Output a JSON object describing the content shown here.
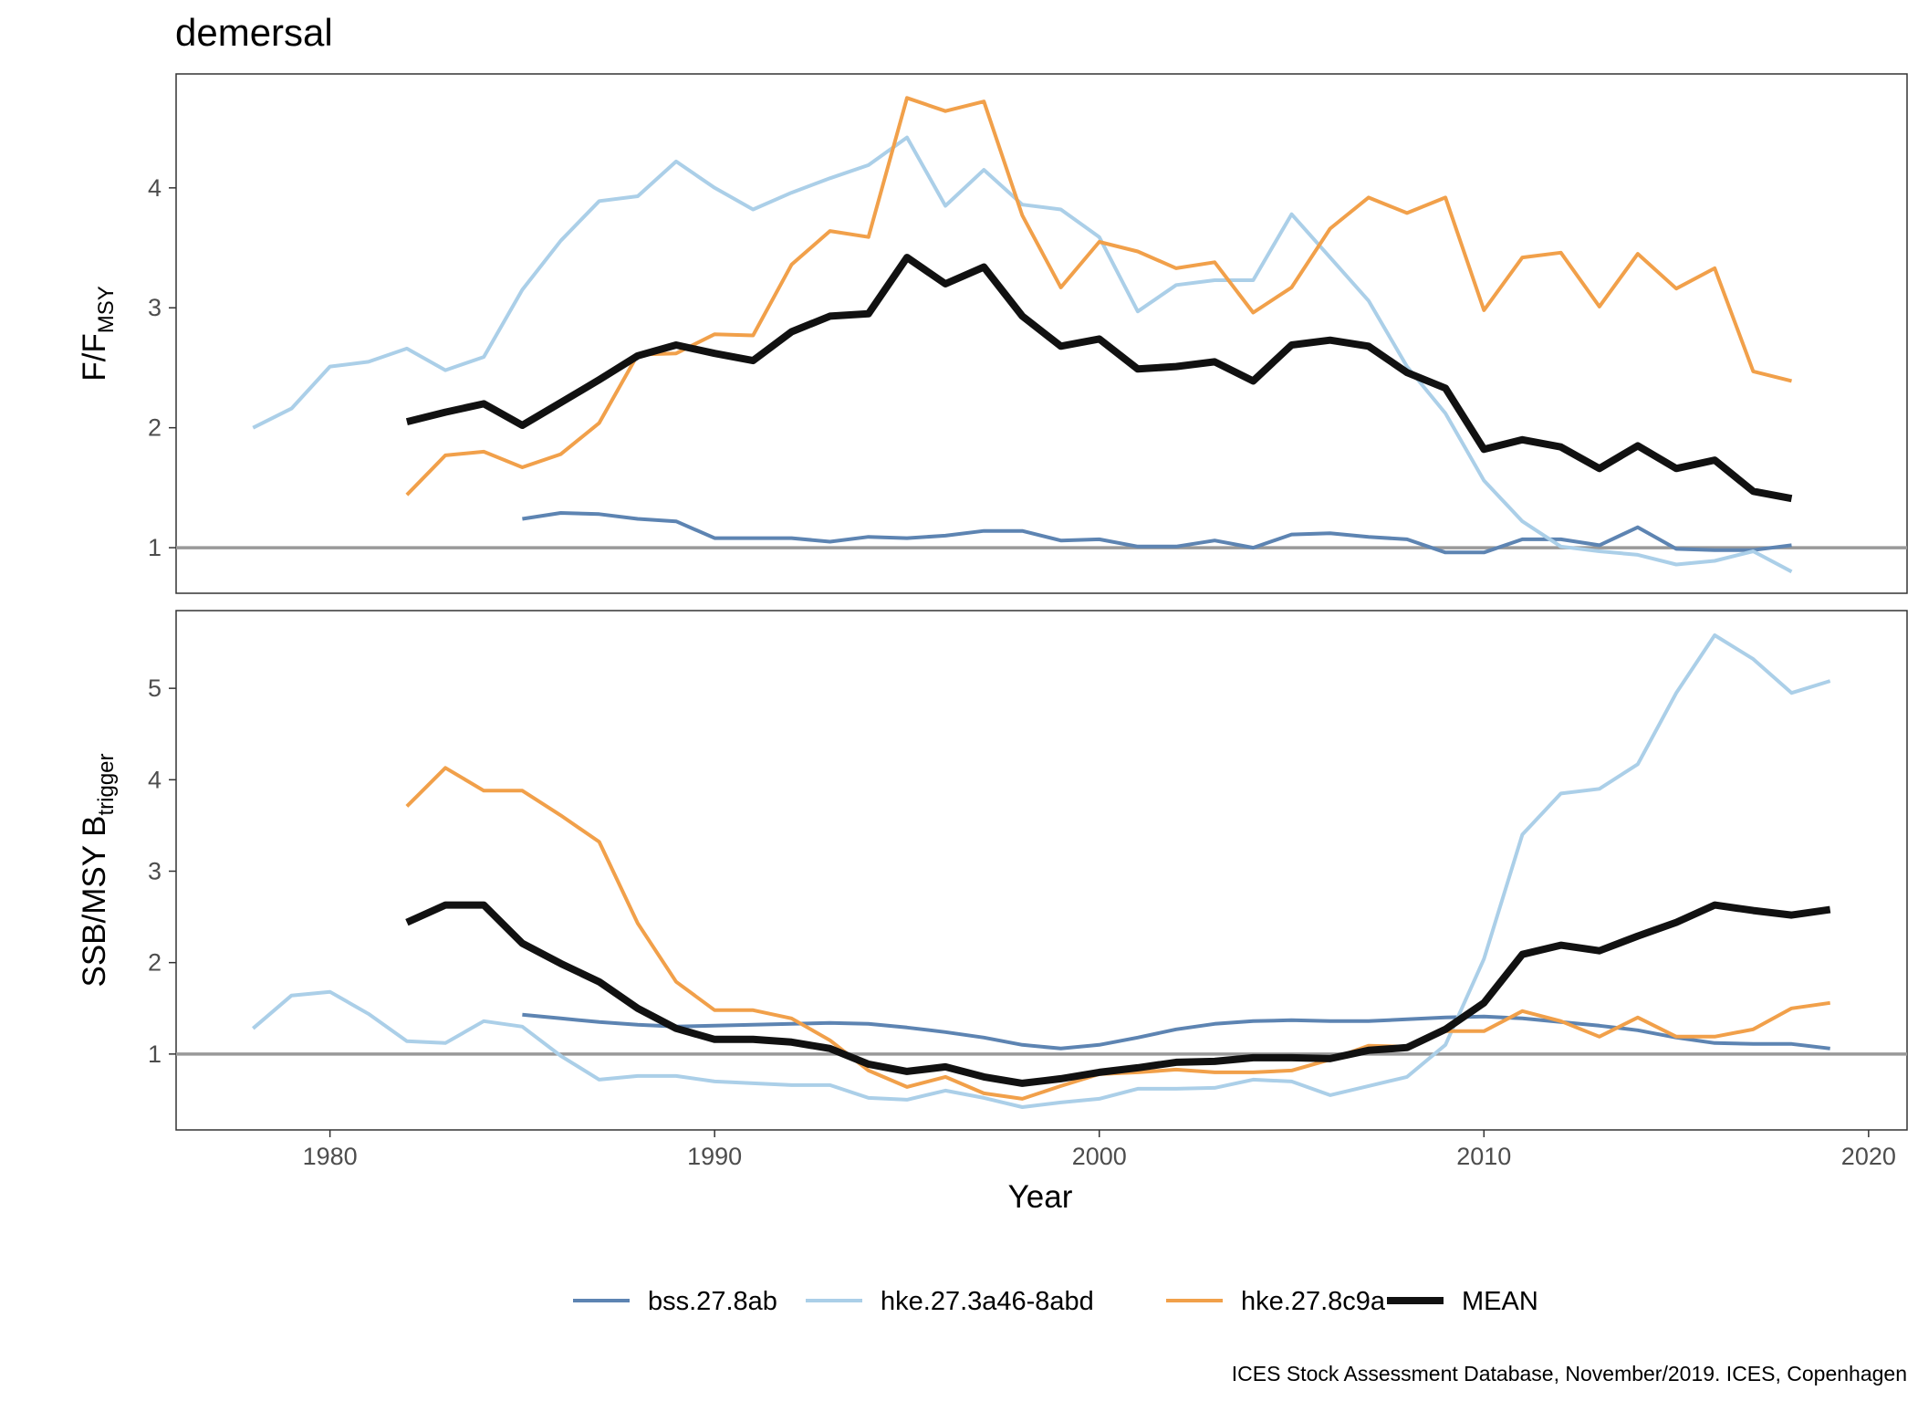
{
  "chart_data": {
    "type": "line",
    "title": "demersal",
    "xlabel": "Year",
    "caption": "ICES Stock Assessment Database, November/2019. ICES, Copenhagen",
    "xlim": [
      1976,
      2021
    ],
    "x_ticks": [
      1980,
      1990,
      2000,
      2010,
      2020
    ],
    "legend_position": "bottom",
    "series_styles": [
      {
        "name": "bss.27.8ab",
        "color": "#5d84b2",
        "width": 4
      },
      {
        "name": "hke.27.3a46-8abd",
        "color": "#abcfe8",
        "width": 4
      },
      {
        "name": "hke.27.8c9a",
        "color": "#f1a04a",
        "width": 4
      },
      {
        "name": "MEAN",
        "color": "#111111",
        "width": 8
      }
    ],
    "panels": [
      {
        "ylabel_main": "F/F",
        "ylabel_sub": "MSY",
        "ylim": [
          0.62,
          4.95
        ],
        "y_ticks": [
          1,
          2,
          3,
          4
        ],
        "reference_line": 1,
        "series": [
          {
            "name": "bss.27.8ab",
            "x": [
              1985,
              1986,
              1987,
              1988,
              1989,
              1990,
              1991,
              1992,
              1993,
              1994,
              1995,
              1996,
              1997,
              1998,
              1999,
              2000,
              2001,
              2002,
              2003,
              2004,
              2005,
              2006,
              2007,
              2008,
              2009,
              2010,
              2011,
              2012,
              2013,
              2014,
              2015,
              2016,
              2017,
              2018
            ],
            "y": [
              1.24,
              1.29,
              1.28,
              1.24,
              1.22,
              1.08,
              1.08,
              1.08,
              1.05,
              1.09,
              1.08,
              1.1,
              1.14,
              1.14,
              1.06,
              1.07,
              1.01,
              1.01,
              1.06,
              1.0,
              1.11,
              1.12,
              1.09,
              1.07,
              0.96,
              0.96,
              1.07,
              1.07,
              1.02,
              1.17,
              0.99,
              0.98,
              0.98,
              1.02
            ]
          },
          {
            "name": "hke.27.3a46-8abd",
            "x": [
              1978,
              1979,
              1980,
              1981,
              1982,
              1983,
              1984,
              1985,
              1986,
              1987,
              1988,
              1989,
              1990,
              1991,
              1992,
              1993,
              1994,
              1995,
              1996,
              1997,
              1998,
              1999,
              2000,
              2001,
              2002,
              2003,
              2004,
              2005,
              2006,
              2007,
              2008,
              2009,
              2010,
              2011,
              2012,
              2013,
              2014,
              2015,
              2016,
              2017,
              2018
            ],
            "y": [
              2.0,
              2.16,
              2.51,
              2.55,
              2.66,
              2.48,
              2.59,
              3.15,
              3.56,
              3.89,
              3.93,
              4.22,
              4.0,
              3.82,
              3.96,
              4.08,
              4.19,
              4.42,
              3.85,
              4.15,
              3.86,
              3.82,
              3.59,
              2.97,
              3.19,
              3.23,
              3.23,
              3.78,
              3.42,
              3.06,
              2.51,
              2.12,
              1.56,
              1.22,
              1.01,
              0.97,
              0.94,
              0.86,
              0.89,
              0.97,
              0.8
            ]
          },
          {
            "name": "hke.27.8c9a",
            "x": [
              1982,
              1983,
              1984,
              1985,
              1986,
              1987,
              1988,
              1989,
              1990,
              1991,
              1992,
              1993,
              1994,
              1995,
              1996,
              1997,
              1998,
              1999,
              2000,
              2001,
              2002,
              2003,
              2004,
              2005,
              2006,
              2007,
              2008,
              2009,
              2010,
              2011,
              2012,
              2013,
              2014,
              2015,
              2016,
              2017,
              2018
            ],
            "y": [
              1.44,
              1.77,
              1.8,
              1.67,
              1.78,
              2.04,
              2.61,
              2.62,
              2.78,
              2.77,
              3.36,
              3.64,
              3.59,
              4.75,
              4.64,
              4.72,
              3.77,
              3.17,
              3.55,
              3.47,
              3.33,
              3.38,
              2.96,
              3.17,
              3.66,
              3.92,
              3.79,
              3.92,
              2.98,
              3.42,
              3.46,
              3.01,
              3.45,
              3.16,
              3.33,
              2.47,
              2.39
            ]
          },
          {
            "name": "MEAN",
            "x": [
              1982,
              1983,
              1984,
              1985,
              1986,
              1987,
              1988,
              1989,
              1990,
              1991,
              1992,
              1993,
              1994,
              1995,
              1996,
              1997,
              1998,
              1999,
              2000,
              2001,
              2002,
              2003,
              2004,
              2005,
              2006,
              2007,
              2008,
              2009,
              2010,
              2011,
              2012,
              2013,
              2014,
              2015,
              2016,
              2017,
              2018
            ],
            "y": [
              2.05,
              2.13,
              2.2,
              2.02,
              2.21,
              2.4,
              2.6,
              2.69,
              2.62,
              2.56,
              2.8,
              2.93,
              2.95,
              3.42,
              3.2,
              3.34,
              2.93,
              2.68,
              2.74,
              2.49,
              2.51,
              2.55,
              2.39,
              2.69,
              2.73,
              2.68,
              2.46,
              2.33,
              1.82,
              1.9,
              1.84,
              1.66,
              1.85,
              1.66,
              1.73,
              1.47,
              1.41
            ]
          }
        ]
      },
      {
        "ylabel_main": "SSB/MSY B",
        "ylabel_sub": "trigger",
        "ylim": [
          0.17,
          5.85
        ],
        "y_ticks": [
          1,
          2,
          3,
          4,
          5
        ],
        "reference_line": 1,
        "series": [
          {
            "name": "bss.27.8ab",
            "x": [
              1985,
              1986,
              1987,
              1988,
              1989,
              1990,
              1991,
              1992,
              1993,
              1994,
              1995,
              1996,
              1997,
              1998,
              1999,
              2000,
              2001,
              2002,
              2003,
              2004,
              2005,
              2006,
              2007,
              2008,
              2009,
              2010,
              2011,
              2012,
              2013,
              2014,
              2015,
              2016,
              2017,
              2018,
              2019
            ],
            "y": [
              1.43,
              1.39,
              1.35,
              1.32,
              1.3,
              1.31,
              1.32,
              1.33,
              1.34,
              1.33,
              1.29,
              1.24,
              1.18,
              1.1,
              1.06,
              1.1,
              1.18,
              1.27,
              1.33,
              1.36,
              1.37,
              1.36,
              1.36,
              1.38,
              1.4,
              1.41,
              1.39,
              1.35,
              1.31,
              1.26,
              1.18,
              1.12,
              1.11,
              1.11,
              1.06
            ]
          },
          {
            "name": "hke.27.3a46-8abd",
            "x": [
              1978,
              1979,
              1980,
              1981,
              1982,
              1983,
              1984,
              1985,
              1986,
              1987,
              1988,
              1989,
              1990,
              1991,
              1992,
              1993,
              1994,
              1995,
              1996,
              1997,
              1998,
              1999,
              2000,
              2001,
              2002,
              2003,
              2004,
              2005,
              2006,
              2007,
              2008,
              2009,
              2010,
              2011,
              2012,
              2013,
              2014,
              2015,
              2016,
              2017,
              2018,
              2019
            ],
            "y": [
              1.28,
              1.64,
              1.68,
              1.44,
              1.14,
              1.12,
              1.36,
              1.3,
              0.98,
              0.72,
              0.76,
              0.76,
              0.7,
              0.68,
              0.66,
              0.66,
              0.52,
              0.5,
              0.6,
              0.52,
              0.42,
              0.47,
              0.51,
              0.62,
              0.62,
              0.63,
              0.72,
              0.7,
              0.55,
              0.65,
              0.75,
              1.1,
              2.04,
              3.4,
              3.85,
              3.9,
              4.17,
              4.95,
              5.58,
              5.32,
              4.95,
              5.08
            ]
          },
          {
            "name": "hke.27.8c9a",
            "x": [
              1982,
              1983,
              1984,
              1985,
              1986,
              1987,
              1988,
              1989,
              1990,
              1991,
              1992,
              1993,
              1994,
              1995,
              1996,
              1997,
              1998,
              1999,
              2000,
              2001,
              2002,
              2003,
              2004,
              2005,
              2006,
              2007,
              2008,
              2009,
              2010,
              2011,
              2012,
              2013,
              2014,
              2015,
              2016,
              2017,
              2018,
              2019
            ],
            "y": [
              3.71,
              4.13,
              3.88,
              3.88,
              3.61,
              3.32,
              2.43,
              1.79,
              1.48,
              1.48,
              1.39,
              1.15,
              0.82,
              0.64,
              0.75,
              0.57,
              0.51,
              0.65,
              0.78,
              0.8,
              0.83,
              0.8,
              0.8,
              0.82,
              0.94,
              1.09,
              1.08,
              1.25,
              1.25,
              1.47,
              1.36,
              1.19,
              1.4,
              1.19,
              1.19,
              1.27,
              1.5,
              1.56
            ]
          },
          {
            "name": "MEAN",
            "x": [
              1982,
              1983,
              1984,
              1985,
              1986,
              1987,
              1988,
              1989,
              1990,
              1991,
              1992,
              1993,
              1994,
              1995,
              1996,
              1997,
              1998,
              1999,
              2000,
              2001,
              2002,
              2003,
              2004,
              2005,
              2006,
              2007,
              2008,
              2009,
              2010,
              2011,
              2012,
              2013,
              2014,
              2015,
              2016,
              2017,
              2018,
              2019
            ],
            "y": [
              2.44,
              2.63,
              2.63,
              2.21,
              1.99,
              1.79,
              1.5,
              1.28,
              1.16,
              1.16,
              1.13,
              1.06,
              0.89,
              0.81,
              0.86,
              0.75,
              0.68,
              0.73,
              0.8,
              0.85,
              0.91,
              0.92,
              0.96,
              0.96,
              0.95,
              1.04,
              1.07,
              1.27,
              1.56,
              2.09,
              2.19,
              2.13,
              2.29,
              2.44,
              2.63,
              2.57,
              2.52,
              2.58
            ]
          }
        ]
      }
    ]
  }
}
